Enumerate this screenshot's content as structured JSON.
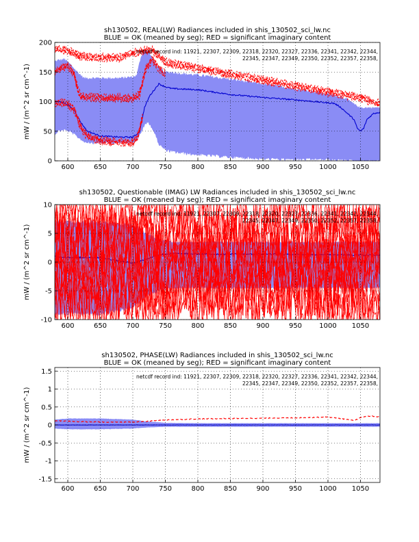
{
  "figure": {
    "background": "#ffffff"
  },
  "colors": {
    "ok_band": "#8a8cf5",
    "ok_mean": "#0000d0",
    "significant": "#ff0000"
  },
  "chart_data": [
    {
      "type": "line",
      "title": "sh130502, REAL(LW) Radiances included in shis_130502_sci_lw.nc",
      "subtitle": "BLUE = OK (meaned by seg); RED = significant imaginary content",
      "note_lines": [
        "netcdf record ind: 11921, 22307, 22309, 22318, 22320, 22327, 22336, 22341, 22342, 22344,",
        "22345, 22347, 22349, 22350, 22352, 22357, 22358,"
      ],
      "xlabel": "",
      "ylabel": "mW / (m^2 sr cm^-1)",
      "xlim": [
        580,
        1080
      ],
      "ylim": [
        0,
        200
      ],
      "xticks": [
        600,
        650,
        700,
        750,
        800,
        850,
        900,
        950,
        1000,
        1050
      ],
      "yticks": [
        0,
        50,
        100,
        150,
        200
      ],
      "grid": true,
      "series": [
        {
          "role": "ok_band",
          "x": [
            580,
            585,
            595,
            605,
            615,
            625,
            640,
            660,
            680,
            700,
            706,
            712,
            718,
            724,
            732,
            740,
            750,
            760,
            780,
            800,
            850,
            900,
            950,
            1000,
            1010,
            1020,
            1030,
            1040,
            1050,
            1060,
            1070,
            1080
          ],
          "upper": [
            168,
            170,
            172,
            162,
            150,
            140,
            140,
            140,
            140,
            142,
            145,
            175,
            188,
            185,
            170,
            158,
            150,
            150,
            147,
            145,
            138,
            130,
            122,
            113,
            111,
            109,
            104,
            96,
            90,
            90,
            90,
            90
          ],
          "lower": [
            45,
            50,
            52,
            48,
            40,
            32,
            30,
            30,
            30,
            32,
            35,
            45,
            60,
            65,
            50,
            28,
            18,
            15,
            12,
            10,
            6,
            3,
            2,
            2,
            1,
            1,
            1,
            0,
            0,
            0,
            0,
            0
          ]
        },
        {
          "role": "ok_mean",
          "x": [
            580,
            590,
            600,
            610,
            620,
            630,
            650,
            680,
            700,
            710,
            718,
            726,
            740,
            750,
            760,
            800,
            850,
            900,
            950,
            1000,
            1010,
            1020,
            1030,
            1040,
            1045,
            1050,
            1055,
            1060,
            1070,
            1080
          ],
          "values": [
            100,
            100,
            95,
            85,
            65,
            50,
            42,
            40,
            40,
            48,
            90,
            110,
            130,
            125,
            122,
            120,
            112,
            107,
            103,
            98,
            97,
            90,
            80,
            70,
            55,
            50,
            55,
            70,
            80,
            82
          ]
        },
        {
          "role": "significant",
          "name": "upper envelope",
          "x": [
            580,
            600,
            620,
            650,
            680,
            700,
            710,
            720,
            730,
            740,
            750,
            800,
            850,
            900,
            950,
            1000,
            1050,
            1080
          ],
          "values": [
            193,
            190,
            180,
            178,
            178,
            185,
            188,
            190,
            190,
            182,
            170,
            160,
            150,
            140,
            130,
            120,
            110,
            100
          ]
        },
        {
          "role": "significant",
          "name": "middle",
          "x": [
            580,
            590,
            600,
            610,
            615,
            620,
            650,
            680,
            700,
            705,
            710,
            720,
            730,
            740,
            750
          ],
          "values": [
            155,
            160,
            165,
            150,
            125,
            112,
            110,
            110,
            110,
            112,
            115,
            160,
            175,
            160,
            150
          ]
        },
        {
          "role": "significant",
          "name": "lower",
          "x": [
            580,
            590,
            600,
            610,
            615,
            620,
            630,
            650,
            680,
            700,
            705,
            710,
            715
          ],
          "values": [
            100,
            102,
            100,
            90,
            75,
            60,
            45,
            38,
            35,
            35,
            40,
            55,
            80
          ]
        }
      ]
    },
    {
      "type": "line",
      "title": "sh130502, Questionable (IMAG) LW Radiances included in shis_130502_sci_lw.nc",
      "subtitle": "BLUE = OK (meaned by seg); RED = significant imaginary content",
      "note_lines": [
        "netcdf record ind: 11921, 22307, 22309, 22318, 22320, 22327, 22336, 22341, 22342, 22344,",
        "22345, 22347, 22349, 22350, 22352, 22357, 22358,"
      ],
      "xlabel": "",
      "ylabel": "mW / (m^2 sr cm^-1)",
      "xlim": [
        580,
        1080
      ],
      "ylim": [
        -10,
        10
      ],
      "xticks": [
        600,
        650,
        700,
        750,
        800,
        850,
        900,
        950,
        1000,
        1050
      ],
      "yticks": [
        -10,
        -5,
        0,
        5,
        10
      ],
      "grid": true,
      "series": [
        {
          "role": "ok_band",
          "x": [
            580,
            650,
            700,
            720,
            740,
            760,
            800,
            900,
            1000,
            1080
          ],
          "upper": [
            7,
            7,
            6.5,
            5,
            4,
            3.5,
            3.5,
            3.5,
            3.5,
            3.5
          ],
          "lower": [
            -9,
            -9,
            -8,
            -6,
            -5,
            -4.5,
            -4.5,
            -4.5,
            -4.5,
            -4.5
          ]
        },
        {
          "role": "ok_mean",
          "x": [
            580,
            600,
            650,
            680,
            700,
            720,
            740,
            760,
            800,
            900,
            1000,
            1080
          ],
          "values": [
            1,
            0.8,
            0.8,
            0.2,
            -0.2,
            0.5,
            1.3,
            1.5,
            1.4,
            1.4,
            1.3,
            1.2
          ]
        },
        {
          "role": "significant",
          "name": "upper envelope",
          "x": [
            580,
            600,
            650,
            700,
            750,
            800,
            900,
            1000,
            1080
          ],
          "values": [
            10,
            10,
            10,
            10,
            10,
            10,
            10,
            10,
            10
          ]
        },
        {
          "role": "significant",
          "name": "lower envelope",
          "x": [
            580,
            600,
            650,
            700,
            750,
            800,
            900,
            1000,
            1080
          ],
          "values": [
            -10,
            -10,
            -10,
            -10,
            -10,
            -10,
            -10,
            -10,
            -10
          ]
        }
      ]
    },
    {
      "type": "line",
      "title": "sh130502, PHASE(LW) Radiances included in shis_130502_sci_lw.nc",
      "subtitle": "BLUE = OK (meaned by seg); RED = significant imaginary content",
      "note_lines": [
        "netcdf record ind: 11921, 22307, 22309, 22318, 22320, 22327, 22336, 22341, 22342, 22344,",
        "22345, 22347, 22349, 22350, 22352, 22357, 22358,"
      ],
      "xlabel": "",
      "ylabel": "mW / (m^2 sr cm^-1)",
      "xlim": [
        580,
        1080
      ],
      "ylim": [
        -1.6,
        1.6
      ],
      "xticks": [
        600,
        650,
        700,
        750,
        800,
        850,
        900,
        950,
        1000,
        1050
      ],
      "yticks": [
        -1.5,
        -1,
        -0.5,
        0,
        0.5,
        1,
        1.5
      ],
      "ytick_labels": [
        "-1.5",
        "-1",
        "-0.5",
        "0",
        "0.5",
        "1",
        "1.5"
      ],
      "grid": true,
      "series": [
        {
          "role": "ok_band",
          "x": [
            580,
            600,
            650,
            700,
            720,
            750,
            800,
            900,
            1000,
            1080
          ],
          "upper": [
            0.15,
            0.18,
            0.18,
            0.15,
            0.1,
            0.06,
            0.05,
            0.05,
            0.05,
            0.05
          ],
          "lower": [
            -0.1,
            -0.12,
            -0.12,
            -0.1,
            -0.07,
            -0.05,
            -0.05,
            -0.05,
            -0.05,
            -0.05
          ]
        },
        {
          "role": "ok_mean",
          "x": [
            580,
            700,
            800,
            900,
            1000,
            1080
          ],
          "values": [
            0,
            0,
            0,
            0,
            0,
            0
          ]
        },
        {
          "role": "significant",
          "name": "dashed trace",
          "x": [
            580,
            600,
            650,
            700,
            720,
            750,
            800,
            850,
            900,
            950,
            1000,
            1020,
            1040,
            1050,
            1060,
            1070,
            1080
          ],
          "values": [
            0.12,
            0.1,
            0.08,
            0.08,
            0.1,
            0.14,
            0.17,
            0.18,
            0.19,
            0.2,
            0.22,
            0.18,
            0.12,
            0.2,
            0.25,
            0.24,
            0.22
          ]
        }
      ]
    }
  ]
}
